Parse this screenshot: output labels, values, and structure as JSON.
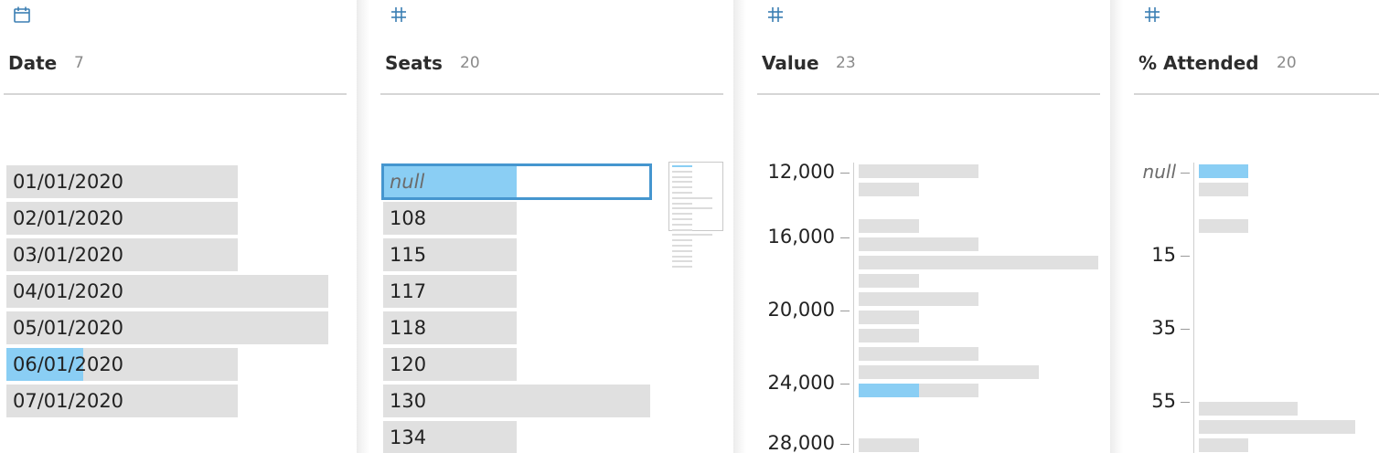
{
  "colors": {
    "bar": "#e0e0e0",
    "selected": "#8acef4",
    "selection_border": "#4596cf",
    "icon": "#3b7fb3"
  },
  "fields": [
    {
      "name": "Date",
      "count": "7",
      "type_icon": "calendar-icon",
      "values": [
        {
          "label": "01/01/2020",
          "rel_count": 0.72,
          "selected_fraction": 0
        },
        {
          "label": "02/01/2020",
          "rel_count": 0.72,
          "selected_fraction": 0
        },
        {
          "label": "03/01/2020",
          "rel_count": 0.72,
          "selected_fraction": 0
        },
        {
          "label": "04/01/2020",
          "rel_count": 1.0,
          "selected_fraction": 0
        },
        {
          "label": "05/01/2020",
          "rel_count": 1.0,
          "selected_fraction": 0
        },
        {
          "label": "06/01/2020",
          "rel_count": 0.72,
          "selected_fraction": 0.33
        },
        {
          "label": "07/01/2020",
          "rel_count": 0.72,
          "selected_fraction": 0
        }
      ]
    },
    {
      "name": "Seats",
      "count": "20",
      "type_icon": "number-icon",
      "values": [
        {
          "label": "null",
          "is_null": true,
          "rel_count": 0.5,
          "selected_fraction": 1,
          "selected": true
        },
        {
          "label": "108",
          "rel_count": 0.5,
          "selected_fraction": 0
        },
        {
          "label": "115",
          "rel_count": 0.5,
          "selected_fraction": 0
        },
        {
          "label": "117",
          "rel_count": 0.5,
          "selected_fraction": 0
        },
        {
          "label": "118",
          "rel_count": 0.5,
          "selected_fraction": 0
        },
        {
          "label": "120",
          "rel_count": 0.5,
          "selected_fraction": 0
        },
        {
          "label": "130",
          "rel_count": 1.0,
          "selected_fraction": 0
        },
        {
          "label": "134",
          "rel_count": 0.5,
          "selected_fraction": 0
        }
      ]
    },
    {
      "name": "Value",
      "count": "23",
      "type_icon": "number-icon",
      "axis_labels": [
        "12,000",
        "16,000",
        "20,000",
        "24,000",
        "28,000"
      ],
      "bins": [
        {
          "rel_count": 0.5,
          "selected_fraction": 0
        },
        {
          "rel_count": 0.25,
          "selected_fraction": 0
        },
        {
          "rel_count": 0,
          "selected_fraction": 0
        },
        {
          "rel_count": 0.25,
          "selected_fraction": 0
        },
        {
          "rel_count": 0.5,
          "selected_fraction": 0
        },
        {
          "rel_count": 1.0,
          "selected_fraction": 0
        },
        {
          "rel_count": 0.25,
          "selected_fraction": 0
        },
        {
          "rel_count": 0.5,
          "selected_fraction": 0
        },
        {
          "rel_count": 0.25,
          "selected_fraction": 0
        },
        {
          "rel_count": 0.25,
          "selected_fraction": 0
        },
        {
          "rel_count": 0.5,
          "selected_fraction": 0
        },
        {
          "rel_count": 0.75,
          "selected_fraction": 0
        },
        {
          "rel_count": 0.5,
          "selected_fraction": 0.5
        },
        {
          "rel_count": 0,
          "selected_fraction": 0
        },
        {
          "rel_count": 0,
          "selected_fraction": 0
        },
        {
          "rel_count": 0.25,
          "selected_fraction": 0
        }
      ]
    },
    {
      "name": "% Attended",
      "count": "20",
      "type_icon": "number-icon",
      "axis_labels": [
        "null",
        "15",
        "35",
        "55"
      ],
      "bins": [
        {
          "rel_count": 0.3,
          "selected_fraction": 1
        },
        {
          "rel_count": 0.3,
          "selected_fraction": 0
        },
        {
          "rel_count": 0,
          "selected_fraction": 0
        },
        {
          "rel_count": 0.3,
          "selected_fraction": 0
        },
        {
          "rel_count": 0,
          "selected_fraction": 0
        },
        {
          "rel_count": 0,
          "selected_fraction": 0
        },
        {
          "rel_count": 0,
          "selected_fraction": 0
        },
        {
          "rel_count": 0,
          "selected_fraction": 0
        },
        {
          "rel_count": 0,
          "selected_fraction": 0
        },
        {
          "rel_count": 0,
          "selected_fraction": 0
        },
        {
          "rel_count": 0,
          "selected_fraction": 0
        },
        {
          "rel_count": 0,
          "selected_fraction": 0
        },
        {
          "rel_count": 0,
          "selected_fraction": 0
        },
        {
          "rel_count": 0.6,
          "selected_fraction": 0
        },
        {
          "rel_count": 0.95,
          "selected_fraction": 0
        },
        {
          "rel_count": 0.3,
          "selected_fraction": 0
        }
      ]
    }
  ]
}
